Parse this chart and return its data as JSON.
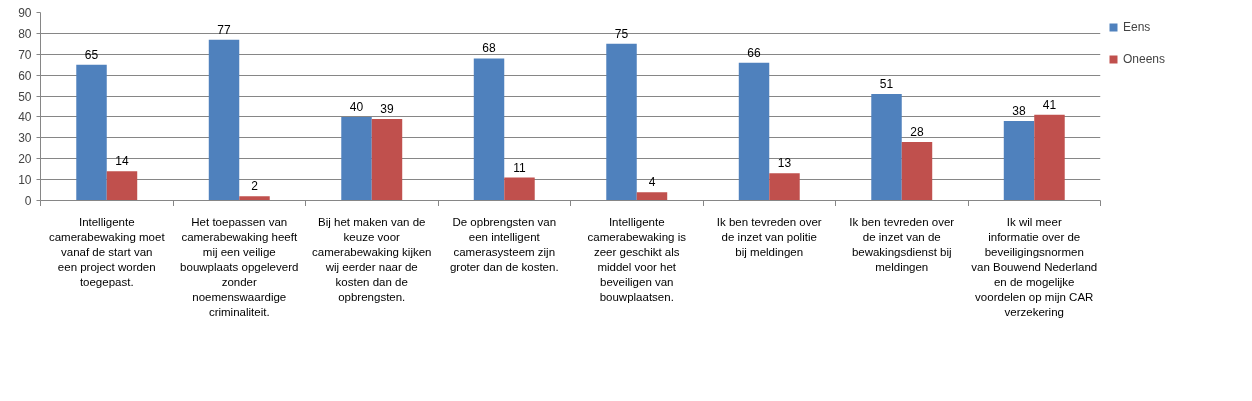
{
  "chart_data": {
    "type": "bar",
    "categories": [
      "Intelligente camerabewaking moet vanaf de start van een project worden toegepast.",
      "Het toepassen van camerabewaking heeft mij een veilige bouwplaats opgeleverd zonder noemenswaardige criminaliteit.",
      "Bij het maken van de keuze voor camerabewaking kijken wij eerder naar de kosten dan de opbrengsten.",
      "De opbrengsten van een intelligent camerasysteem zijn groter dan de kosten.",
      "Intelligente camerabewaking is zeer geschikt als middel voor het beveiligen van bouwplaatsen.",
      "Ik ben tevreden over de inzet van politie bij meldingen",
      "Ik ben tevreden over de inzet van de bewakingsdienst bij meldingen",
      "Ik wil meer informatie over de beveiligingsnormen van Bouwend Nederland en de mogelijke voordelen op mijn CAR verzekering"
    ],
    "series": [
      {
        "name": "Eens",
        "color": "#4f81bd",
        "values": [
          65,
          77,
          40,
          68,
          75,
          66,
          51,
          38
        ]
      },
      {
        "name": "Oneens",
        "color": "#c0504d",
        "values": [
          14,
          2,
          39,
          11,
          4,
          13,
          28,
          41
        ]
      }
    ],
    "ylim": [
      0,
      90
    ],
    "yticks": [
      0,
      10,
      20,
      30,
      40,
      50,
      60,
      70,
      80,
      90
    ],
    "grid": "y",
    "legend": "right",
    "data_labels": true
  }
}
